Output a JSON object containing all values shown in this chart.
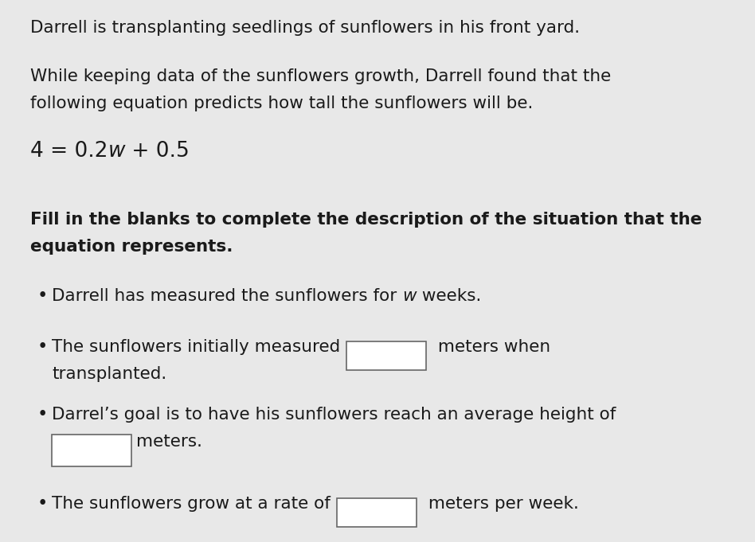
{
  "background_color": "#e8e8e8",
  "text_color": "#1a1a1a",
  "line1": "Darrell is transplanting seedlings of sunflowers in his front yard.",
  "line2a": "While keeping data of the sunflowers growth, Darrell found that the",
  "line2b": "following equation predicts how tall the sunflowers will be.",
  "equation": "4 = 0.2ω + 0.5",
  "bold_line1": "Fill in the blanks to complete the description of the situation that the",
  "bold_line2": "equation represents.",
  "b1_pre": "Darrell has measured the sunflowers for ",
  "b1_italic": "w",
  "b1_post": " weeks.",
  "b2_pre": "The sunflowers initially measured",
  "b2_post": "meters when",
  "b2_cont": "transplanted.",
  "b3_line": "Darrel’s goal is to have his sunflowers reach an average height of",
  "b3_post": "meters.",
  "b4_pre": "The sunflowers grow at a rate of",
  "b4_post": "meters per week.",
  "font_size": 15.5,
  "font_size_eq": 19
}
